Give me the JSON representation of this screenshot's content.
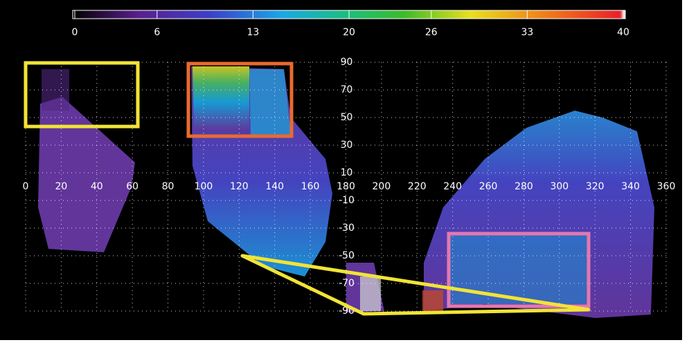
{
  "chart_data": {
    "type": "map",
    "colorbar": {
      "lim": [
        0,
        40
      ],
      "ticks": [
        0,
        6,
        13,
        20,
        26,
        33,
        40
      ]
    },
    "xlim": [
      0,
      360
    ],
    "xticks": [
      0,
      20,
      40,
      60,
      80,
      100,
      120,
      140,
      160,
      180,
      200,
      220,
      240,
      260,
      280,
      300,
      320,
      340,
      360
    ],
    "ylim": [
      -90,
      90
    ],
    "yticks": [
      -90,
      -70,
      -50,
      -30,
      -10,
      10,
      30,
      50,
      70,
      90
    ],
    "grid": true
  }
}
